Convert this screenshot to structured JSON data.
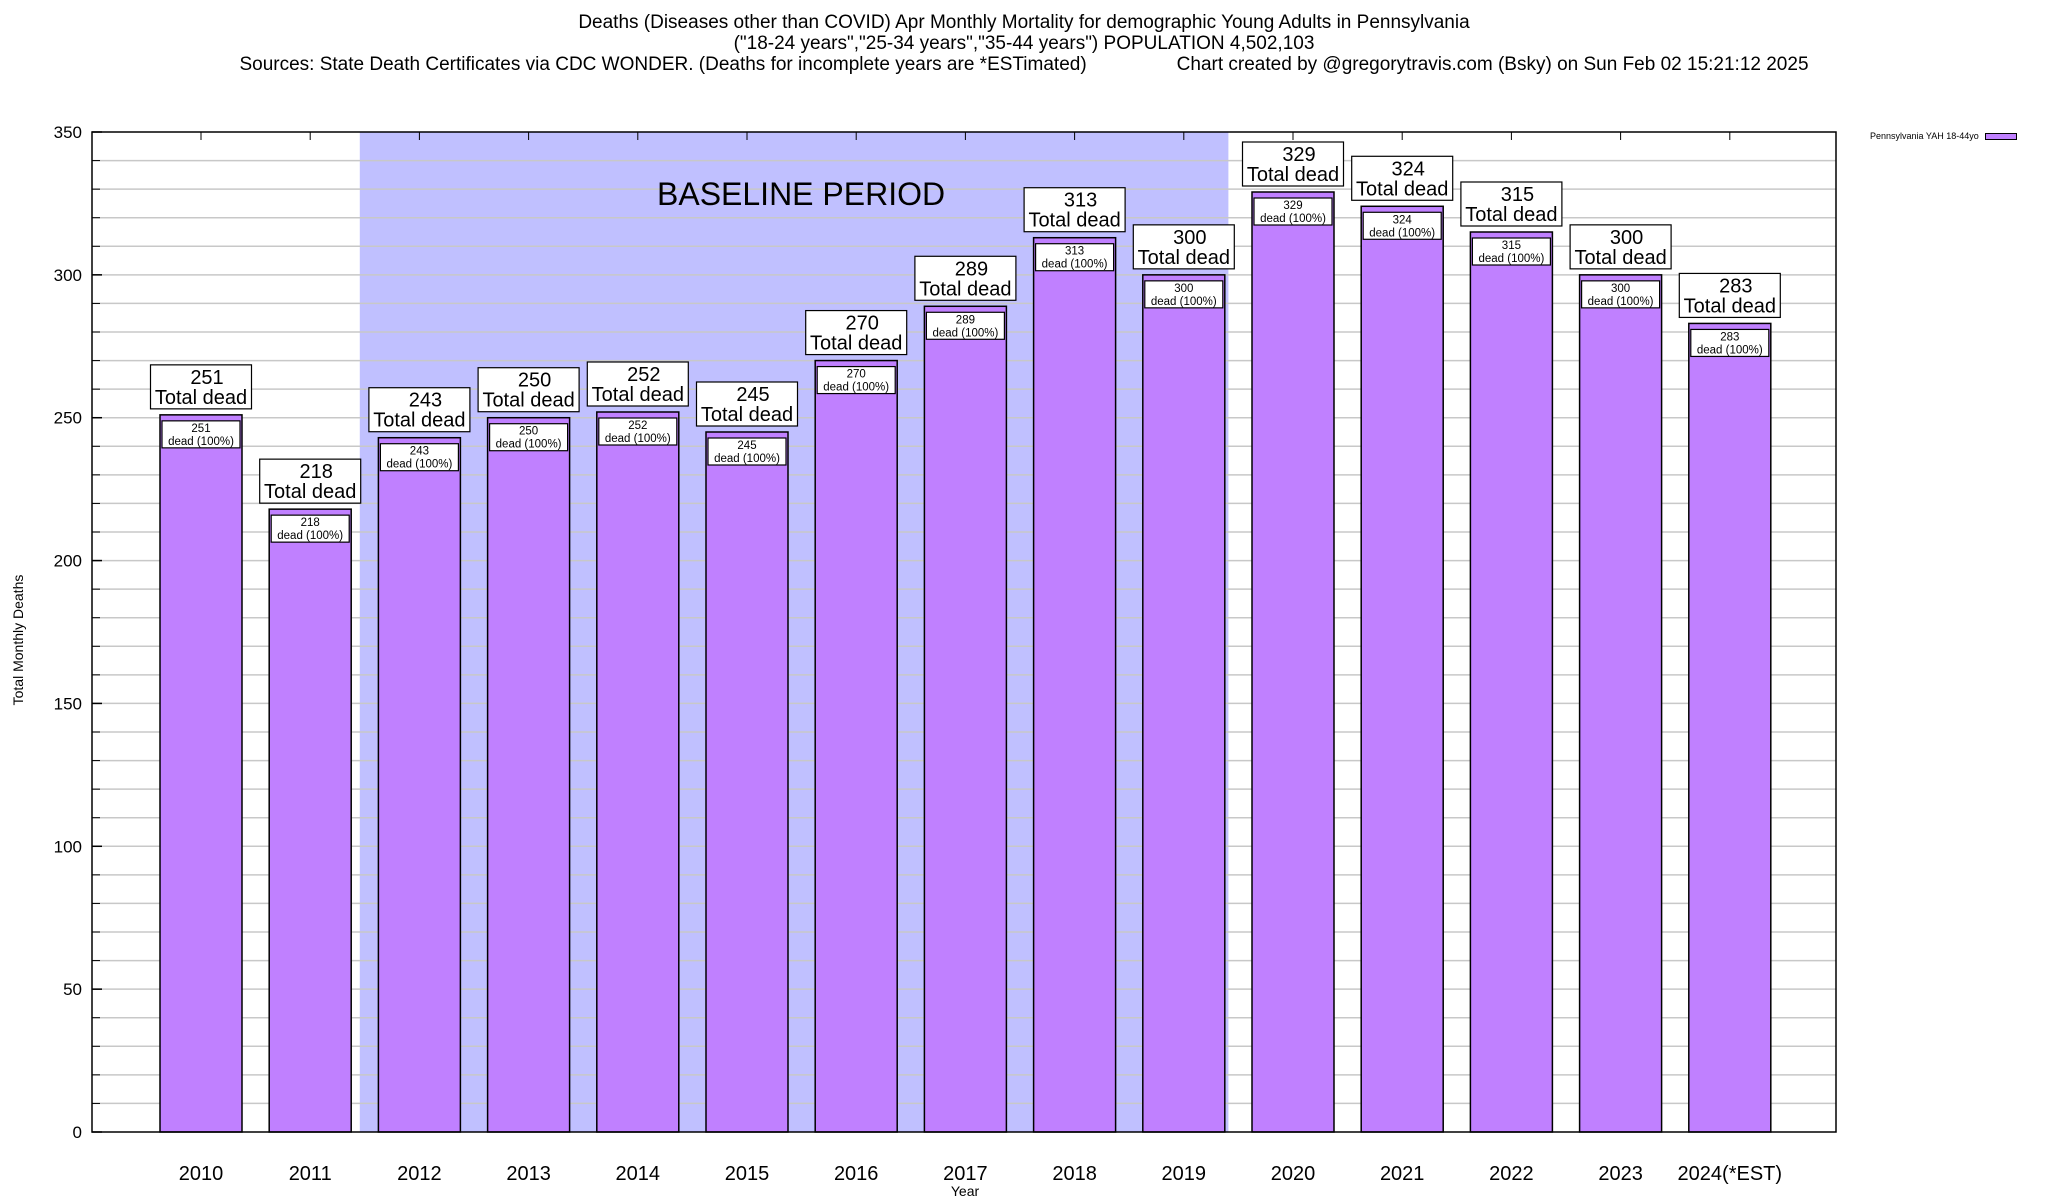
{
  "header": {
    "title_line1": "Deaths (Diseases other than COVID) Apr Monthly Mortality for demographic Young Adults in Pennsylvania",
    "title_line2": "(\"18-24 years\",\"25-34 years\",\"35-44 years\") POPULATION 4,502,103",
    "sources": "Sources: State Death Certificates via CDC WONDER. (Deaths for incomplete years are *ESTimated)",
    "credit": "Chart created by @gregorytravis.com (Bsky) on Sun Feb 02 15:21:12 2025"
  },
  "chart_data": {
    "type": "bar",
    "title": "Deaths (Diseases other than COVID) Apr Monthly Mortality for demographic Young Adults in Pennsylvania",
    "xlabel": "Year",
    "ylabel": "Total Monthly Deaths",
    "ylim": [
      0,
      350
    ],
    "yticks": [
      0,
      50,
      100,
      150,
      200,
      250,
      300,
      350
    ],
    "y_minor_step": 10,
    "grid": true,
    "legend": {
      "position": "top-right",
      "entries": [
        "Pennsylvania YAH 18-44yo"
      ]
    },
    "categories": [
      "2010",
      "2011",
      "2012",
      "2013",
      "2014",
      "2015",
      "2016",
      "2017",
      "2018",
      "2019",
      "2020",
      "2021",
      "2022",
      "2023",
      "2024(*EST)"
    ],
    "series": [
      {
        "name": "Pennsylvania YAH 18-44yo",
        "color": "#c080ff",
        "values": [
          251,
          218,
          243,
          250,
          252,
          245,
          270,
          289,
          313,
          300,
          329,
          324,
          315,
          300,
          283
        ]
      }
    ],
    "total_label_suffix": "Total dead",
    "inner_label_suffix": "dead (100%)",
    "annotations": [
      {
        "text": "BASELINE PERIOD",
        "span_start": "2012",
        "span_end": "2019",
        "color": "#c0c0ff"
      }
    ]
  },
  "colors": {
    "bar": "#c080ff",
    "baseline_band": "#c0c0ff",
    "grid": "#c8c8c8"
  }
}
